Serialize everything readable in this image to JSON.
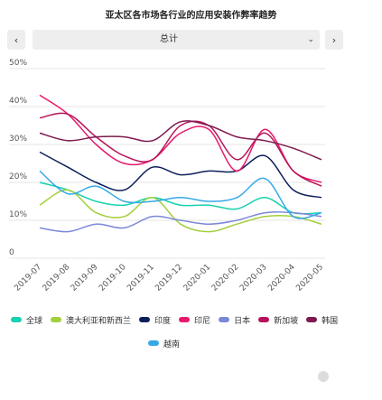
{
  "title": "亚太区各市场各行业的应用安装作弊率趋势",
  "controls": {
    "prev_icon": "chevron-left-icon",
    "prev_label": "‹",
    "next_icon": "chevron-right-icon",
    "next_label": "›",
    "selected": "总计",
    "caret_icon": "chevron-down-icon",
    "caret_label": "⌄"
  },
  "chart_data": {
    "type": "line",
    "title": "亚太区各市场各行业的应用安装作弊率趋势",
    "xlabel": "",
    "ylabel": "",
    "categories": [
      "2019-07",
      "2019-08",
      "2019-09",
      "2019-10",
      "2019-11",
      "2019-12",
      "2020-01",
      "2020-02",
      "2020-03",
      "2020-04",
      "2020-05"
    ],
    "ylim": [
      0,
      50
    ],
    "yticks": [
      0,
      10,
      20,
      30,
      40,
      50
    ],
    "ytick_labels": [
      "0",
      "10%",
      "20%",
      "30%",
      "40%",
      "50%"
    ],
    "grid": true,
    "legend_position": "bottom",
    "series": [
      {
        "name": "全球",
        "color": "#17d1b0",
        "values": [
          20,
          18,
          15,
          14,
          16,
          14,
          14,
          13,
          16,
          12,
          12
        ]
      },
      {
        "name": "澳大利亚和新西兰",
        "color": "#a3cf3c",
        "values": [
          14,
          18,
          12,
          11,
          16,
          9,
          7,
          9,
          11,
          11,
          9
        ]
      },
      {
        "name": "印度",
        "color": "#0e1f5b",
        "values": [
          28,
          24,
          20,
          18,
          24,
          22,
          23,
          23,
          27,
          18,
          16
        ]
      },
      {
        "name": "印尼",
        "color": "#e8186c",
        "values": [
          43,
          38,
          30,
          25,
          26,
          33,
          34,
          23,
          34,
          23,
          20
        ]
      },
      {
        "name": "日本",
        "color": "#7b88d8",
        "values": [
          8,
          7,
          9,
          8,
          11,
          10,
          9,
          10,
          12,
          12,
          11
        ]
      },
      {
        "name": "新加坡",
        "color": "#b8145a",
        "values": [
          37,
          38,
          32,
          27,
          26,
          35,
          35,
          26,
          33,
          23,
          19
        ]
      },
      {
        "name": "韩国",
        "color": "#7d1a4e",
        "values": [
          33,
          31,
          32,
          32,
          31,
          36,
          35,
          32,
          31,
          29,
          26
        ]
      },
      {
        "name": "越南",
        "color": "#35a8e8",
        "values": [
          23,
          17,
          19,
          15,
          15,
          16,
          15,
          16,
          21,
          11,
          12
        ]
      }
    ]
  }
}
